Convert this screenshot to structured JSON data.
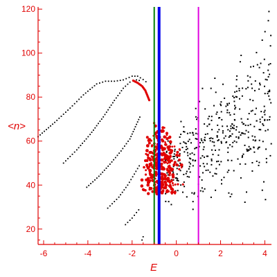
{
  "chart_data": {
    "type": "scatter",
    "title": "",
    "xlabel": "E",
    "ylabel": "<n>",
    "xlim": [
      -6.25,
      4.3
    ],
    "ylim": [
      13,
      121
    ],
    "grid": false,
    "legend": "none",
    "x_ticks": [
      -6,
      -4,
      -2,
      0,
      2,
      4
    ],
    "y_ticks": [
      20,
      40,
      60,
      80,
      100,
      120
    ],
    "colors": {
      "axis": "#e00000",
      "black_points": "#000000",
      "red_points": "#e00000",
      "green_line": "#008000",
      "blue_line": "#0000ee",
      "magenta_line": "#e000e0"
    },
    "vertical_lines": [
      {
        "x": -1.0,
        "color": "#008000",
        "width": "thin"
      },
      {
        "x": -0.78,
        "color": "#0000ee",
        "width": "thick"
      },
      {
        "x": 1.0,
        "color": "#e000e0",
        "width": "thin"
      }
    ],
    "series": [
      {
        "color": "black",
        "style": "dotted-curves",
        "curves": [
          [
            [
              -6.25,
              62
            ],
            [
              -5.5,
              68.5
            ],
            [
              -4.8,
              75
            ],
            [
              -4.2,
              81
            ],
            [
              -3.6,
              86
            ],
            [
              -3.2,
              87.2
            ],
            [
              -2.8,
              87.2
            ],
            [
              -2.4,
              87.8
            ],
            [
              -2.0,
              89.5
            ],
            [
              -1.75,
              89.5
            ],
            [
              -1.5,
              88
            ],
            [
              -1.25,
              86
            ]
          ],
          [
            [
              -5.1,
              50
            ],
            [
              -4.5,
              56
            ],
            [
              -3.9,
              63
            ],
            [
              -3.3,
              71
            ],
            [
              -2.8,
              78.5
            ],
            [
              -2.4,
              84
            ],
            [
              -2.1,
              86.8
            ],
            [
              -1.8,
              87.8
            ],
            [
              -1.55,
              87.3
            ]
          ],
          [
            [
              -4.05,
              39
            ],
            [
              -3.5,
              44
            ],
            [
              -3.0,
              49.5
            ],
            [
              -2.5,
              55.5
            ],
            [
              -2.1,
              61
            ],
            [
              -1.85,
              66.5
            ],
            [
              -1.6,
              72
            ]
          ],
          [
            [
              -3.1,
              29.5
            ],
            [
              -2.6,
              34.5
            ],
            [
              -2.2,
              40
            ],
            [
              -1.9,
              45
            ],
            [
              -1.6,
              50
            ]
          ],
          [
            [
              -2.3,
              22
            ],
            [
              -2.0,
              25
            ],
            [
              -1.8,
              27.5
            ],
            [
              -1.6,
              30
            ]
          ],
          [
            [
              -1.55,
              15
            ],
            [
              -1.45,
              18
            ]
          ]
        ],
        "scatter": {
          "x_range": [
            -0.5,
            4.3
          ],
          "y_trend": [
            [
              -0.5,
              48
            ],
            [
              1,
              53
            ],
            [
              2,
              62
            ],
            [
              3,
              70
            ],
            [
              4,
              78
            ]
          ],
          "y_spread": 12,
          "count": 430
        }
      },
      {
        "color": "red",
        "style": "clustered-points",
        "cluster_x_range": [
          -1.6,
          0.4
        ],
        "cluster_y_range": [
          36,
          70
        ],
        "curve": [
          [
            -1.95,
            87.5
          ],
          [
            -1.75,
            86.5
          ],
          [
            -1.55,
            85
          ],
          [
            -1.4,
            83
          ],
          [
            -1.3,
            80.5
          ],
          [
            -1.2,
            78
          ]
        ],
        "count": 320
      }
    ]
  }
}
